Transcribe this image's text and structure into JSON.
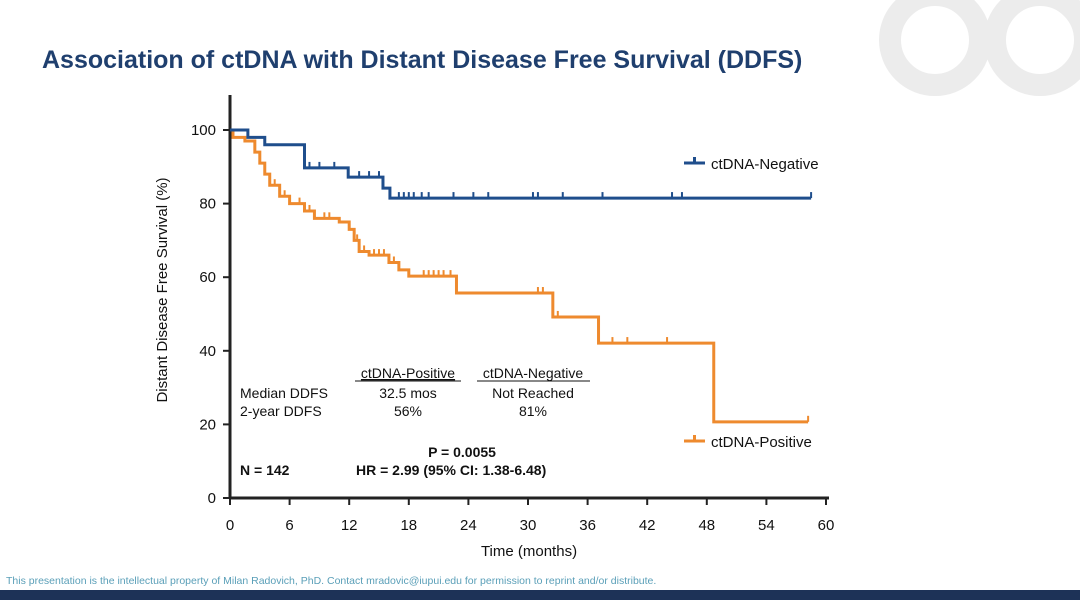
{
  "title": "Association of ctDNA with Distant Disease Free Survival (DDFS)",
  "footer": "This presentation is the intellectual property of Milan Radovich, PhD. Contact mradovic@iupui.edu for permission to reprint and/or distribute.",
  "chart_data": {
    "type": "line",
    "subtype": "kaplan-meier step",
    "xlabel": "Time (months)",
    "ylabel": "Distant Disease Free Survival (%)",
    "xlim": [
      0,
      60
    ],
    "ylim": [
      0,
      100
    ],
    "xticks": [
      "0",
      "6",
      "12",
      "18",
      "24",
      "30",
      "36",
      "42",
      "48",
      "54",
      "60"
    ],
    "yticks": [
      "0",
      "20",
      "40",
      "60",
      "80",
      "100"
    ],
    "grid": false,
    "legend_placement": "right",
    "series": [
      {
        "name": "ctDNA-Negative",
        "color": "#1f4e8c",
        "steps": [
          [
            0,
            100
          ],
          [
            1.8,
            98
          ],
          [
            3.5,
            96
          ],
          [
            7.5,
            89.7
          ],
          [
            11.9,
            87.2
          ],
          [
            15.4,
            84.2
          ],
          [
            16.1,
            81.5
          ],
          [
            58.5,
            81.5
          ]
        ],
        "censored": [
          8,
          9,
          10.5,
          13,
          14,
          15,
          17,
          17.5,
          18,
          18.5,
          19.3,
          20,
          22.5,
          24.5,
          26,
          30.5,
          31,
          33.5,
          37.5,
          44.5,
          45.5,
          58.5
        ]
      },
      {
        "name": "ctDNA-Positive",
        "color": "#ee8a2e",
        "steps": [
          [
            0,
            100
          ],
          [
            0.3,
            98
          ],
          [
            1.5,
            97
          ],
          [
            2.5,
            94
          ],
          [
            3,
            91
          ],
          [
            3.5,
            88
          ],
          [
            4,
            85
          ],
          [
            5,
            82
          ],
          [
            6,
            80
          ],
          [
            7.5,
            78
          ],
          [
            8.5,
            76
          ],
          [
            11,
            75
          ],
          [
            12,
            73
          ],
          [
            12.5,
            70
          ],
          [
            13,
            67
          ],
          [
            14,
            66
          ],
          [
            16,
            64
          ],
          [
            17,
            62
          ],
          [
            18,
            60.3
          ],
          [
            22.8,
            55.7
          ],
          [
            32.5,
            49.2
          ],
          [
            37.1,
            42.1
          ],
          [
            48.7,
            20.7
          ],
          [
            58.2,
            20.7
          ]
        ],
        "censored": [
          4.5,
          5.5,
          7,
          8,
          9.5,
          10,
          12.8,
          13.5,
          14.5,
          15,
          15.5,
          16.5,
          19.5,
          20,
          20.5,
          21,
          21.5,
          22.2,
          31,
          31.5,
          33,
          38.5,
          40,
          44,
          58.2
        ]
      }
    ],
    "annotations": {
      "table_headers": [
        "ctDNA-Positive",
        "ctDNA-Negative"
      ],
      "rows": [
        {
          "label": "Median DDFS",
          "positive": "32.5 mos",
          "negative": "Not Reached"
        },
        {
          "label": "2-year DDFS",
          "positive": "56%",
          "negative": "81%"
        }
      ],
      "p_value": "P = 0.0055",
      "n": "N = 142",
      "hr": "HR = 2.99 (95% CI: 1.38-6.48)"
    }
  }
}
